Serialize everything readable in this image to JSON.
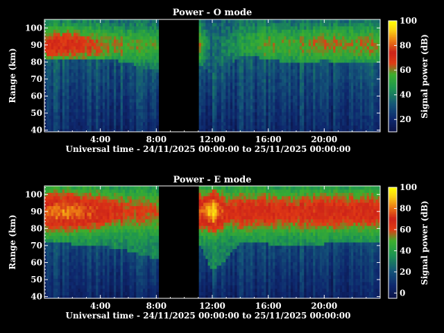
{
  "chart_data": [
    {
      "type": "heatmap",
      "title": "Power - O mode",
      "xlabel": "Universal time - 24/11/2025 00:00:00 to 25/11/2025 00:00:00",
      "ylabel": "Range (km)",
      "x_unit": "hours UT",
      "xlim": [
        0,
        24
      ],
      "x_ticks": [
        4,
        8,
        12,
        16,
        20
      ],
      "x_tick_labels": [
        "4:00",
        "8:00",
        "12:00",
        "16:00",
        "20:00"
      ],
      "ylim": [
        39,
        105
      ],
      "y_ticks": [
        40,
        50,
        60,
        70,
        80,
        90,
        100
      ],
      "colorbar": {
        "label": "Signal power (dB)",
        "range": [
          10,
          100
        ],
        "ticks": [
          20,
          40,
          60,
          80,
          100
        ]
      },
      "data_gaps_hours": [
        [
          8.1,
          11.0
        ]
      ],
      "profile_times": [
        0,
        2,
        4,
        6,
        8,
        11,
        12,
        13,
        14,
        16,
        18,
        20,
        22,
        24
      ],
      "background_top_km": [
        82,
        82,
        82,
        80,
        74,
        79,
        73,
        74,
        84,
        82,
        79,
        81,
        79,
        79
      ],
      "peak_power_db": [
        70,
        72,
        63,
        58,
        55,
        62,
        36,
        42,
        48,
        58,
        56,
        62,
        60,
        60
      ]
    },
    {
      "type": "heatmap",
      "title": "Power - E mode",
      "xlabel": "Universal time - 24/11/2025 00:00:00 to 25/11/2025 00:00:00",
      "ylabel": "Range (km)",
      "x_unit": "hours UT",
      "xlim": [
        0,
        24
      ],
      "x_ticks": [
        4,
        8,
        12,
        16,
        20
      ],
      "x_tick_labels": [
        "4:00",
        "8:00",
        "12:00",
        "16:00",
        "20:00"
      ],
      "ylim": [
        39,
        105
      ],
      "y_ticks": [
        40,
        50,
        60,
        70,
        80,
        90,
        100
      ],
      "colorbar": {
        "label": "Signal power (dB)",
        "range": [
          -5,
          100
        ],
        "ticks": [
          0,
          20,
          40,
          60,
          80,
          100
        ]
      },
      "data_gaps_hours": [
        [
          8.1,
          11.0
        ]
      ],
      "profile_times": [
        0,
        2,
        4,
        6,
        8,
        11,
        12,
        13,
        14,
        16,
        18,
        20,
        22,
        24
      ],
      "background_top_km": [
        72,
        71,
        70,
        67,
        62,
        73,
        55,
        62,
        72,
        71,
        70,
        71,
        72,
        72
      ],
      "peak_power_db": [
        78,
        82,
        70,
        62,
        58,
        72,
        95,
        66,
        68,
        68,
        66,
        70,
        68,
        68
      ]
    }
  ]
}
